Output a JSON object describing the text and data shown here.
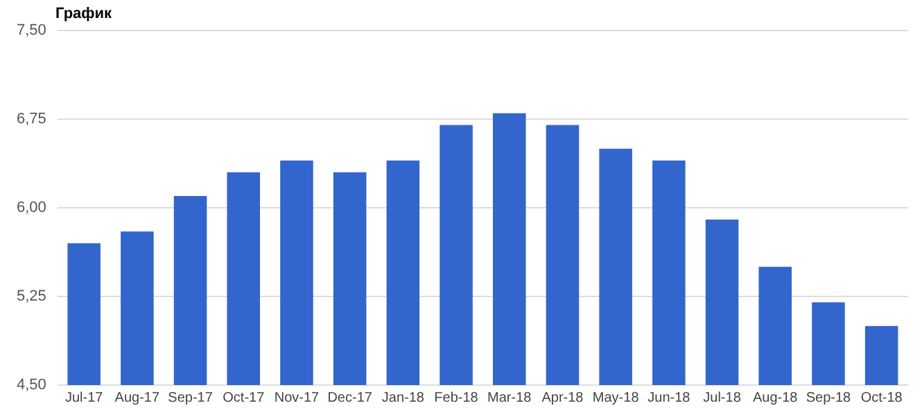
{
  "chart_data": {
    "type": "bar",
    "title": "График",
    "categories": [
      "Jul-17",
      "Aug-17",
      "Sep-17",
      "Oct-17",
      "Nov-17",
      "Dec-17",
      "Jan-18",
      "Feb-18",
      "Mar-18",
      "Apr-18",
      "May-18",
      "Jun-18",
      "Jul-18",
      "Aug-18",
      "Sep-18",
      "Oct-18"
    ],
    "values": [
      5.7,
      5.8,
      6.1,
      6.3,
      6.4,
      6.3,
      6.4,
      6.7,
      6.8,
      6.7,
      6.5,
      6.4,
      5.9,
      5.5,
      5.2,
      5.0
    ],
    "color": "#3366cc",
    "ylim": [
      4.5,
      7.5
    ],
    "yticks": [
      {
        "value": 4.5,
        "label": "4,50"
      },
      {
        "value": 5.25,
        "label": "5,25"
      },
      {
        "value": 6,
        "label": "6,00"
      },
      {
        "value": 6.75,
        "label": "6,75"
      },
      {
        "value": 7.5,
        "label": "7,50"
      }
    ],
    "grid": "y",
    "legend": false
  }
}
